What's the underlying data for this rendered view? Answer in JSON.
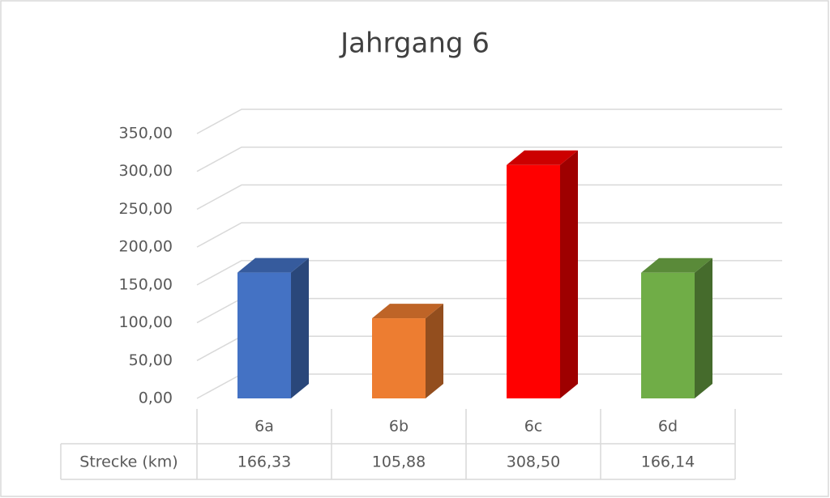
{
  "chart_data": {
    "type": "bar3d",
    "title": "Jahrgang 6",
    "categories": [
      "6a",
      "6b",
      "6c",
      "6d"
    ],
    "series": [
      {
        "name": "Strecke (km)",
        "values": [
          166.33,
          105.88,
          308.5,
          166.14
        ],
        "value_labels": [
          "166,33",
          "105,88",
          "308,50",
          "166,14"
        ],
        "colors": [
          "#4472c4",
          "#ed7d31",
          "#ff0000",
          "#70ad47"
        ]
      }
    ],
    "ylim": [
      0,
      350
    ],
    "yticks": [
      {
        "value": 0,
        "label": "0,00"
      },
      {
        "value": 50,
        "label": "50,00"
      },
      {
        "value": 100,
        "label": "100,00"
      },
      {
        "value": 150,
        "label": "150,00"
      },
      {
        "value": 200,
        "label": "200,00"
      },
      {
        "value": 250,
        "label": "250,00"
      },
      {
        "value": 300,
        "label": "300,00"
      },
      {
        "value": 350,
        "label": "350,00"
      }
    ],
    "grid": true
  }
}
